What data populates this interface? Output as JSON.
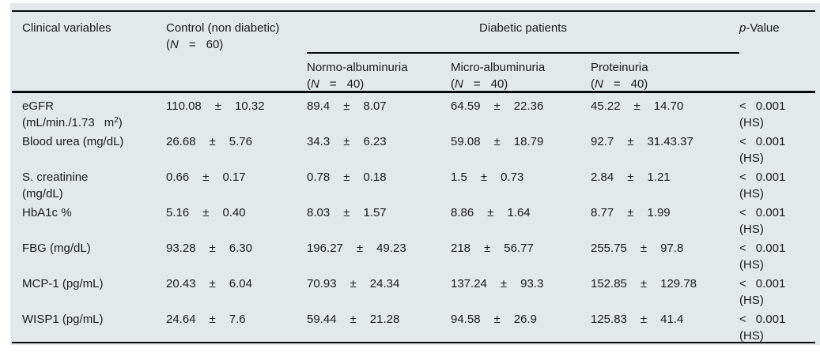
{
  "colors": {
    "table_background": "#e3e8ea",
    "rule": "#0a0a0a"
  },
  "symbols": {
    "paren_open": "(",
    "n_italic": "N",
    "eq": "=",
    "pm": "±",
    "lt": "<"
  },
  "header": {
    "clinical": "Clinical variables",
    "control_title": "Control (non diabetic)",
    "control_n": "60)",
    "diabetic_group": "Diabetic patients",
    "normo_title": "Normo-albuminuria",
    "normo_n": "40)",
    "micro_title": "Micro-albuminuria",
    "micro_n": "40)",
    "prot_title": "Proteinuria",
    "prot_n": "40)",
    "p_italic": "p",
    "p_rest": "-Value"
  },
  "rows": [
    {
      "label1": "eGFR",
      "label2a": "(mL/min./1.73",
      "label2b": "m",
      "label2sup": "2",
      "label2c": ")",
      "control_mean": "110.08",
      "control_sd": "10.32",
      "normo_mean": "89.4",
      "normo_sd": "8.07",
      "micro_mean": "64.59",
      "micro_sd": "22.36",
      "prot_mean": "45.22",
      "prot_sd": "14.70",
      "p": "0.001",
      "p_note": "(HS)"
    },
    {
      "label1": "Blood urea (mg/dL)",
      "control_mean": "26.68",
      "control_sd": "5.76",
      "normo_mean": "34.3",
      "normo_sd": "6.23",
      "micro_mean": "59.08",
      "micro_sd": "18.79",
      "prot_mean": "92.7",
      "prot_sd": "31.43.37",
      "p": "0.001",
      "p_note": "(HS)"
    },
    {
      "label1": "S. creatinine",
      "label2": "(mg/dL)",
      "control_mean": "0.66",
      "control_sd": "0.17",
      "normo_mean": "0.78",
      "normo_sd": "0.18",
      "micro_mean": "1.5",
      "micro_sd": "0.73",
      "prot_mean": "2.84",
      "prot_sd": "1.21",
      "p": "0.001",
      "p_note": "(HS)"
    },
    {
      "label1": "HbA1c %",
      "control_mean": "5.16",
      "control_sd": "0.40",
      "normo_mean": "8.03",
      "normo_sd": "1.57",
      "micro_mean": "8.86",
      "micro_sd": "1.64",
      "prot_mean": "8.77",
      "prot_sd": "1.99",
      "p": "0.001",
      "p_note": "(HS)"
    },
    {
      "label1": "FBG (mg/dL)",
      "control_mean": "93.28",
      "control_sd": "6.30",
      "normo_mean": "196.27",
      "normo_sd": "49.23",
      "micro_mean": "218",
      "micro_sd": "56.77",
      "prot_mean": "255.75",
      "prot_sd": "97.8",
      "p": "0.001",
      "p_note": "(HS)"
    },
    {
      "label1": "MCP-1 (pg/mL)",
      "control_mean": "20.43",
      "control_sd": "6.04",
      "normo_mean": "70.93",
      "normo_sd": "24.34",
      "micro_mean": "137.24",
      "micro_sd": "93.3",
      "prot_mean": "152.85",
      "prot_sd": "129.78",
      "p": "0.001",
      "p_note": "(HS)"
    },
    {
      "label1": "WISP1 (pg/mL)",
      "control_mean": "24.64",
      "control_sd": "7.6",
      "normo_mean": "59.44",
      "normo_sd": "21.28",
      "micro_mean": "94.58",
      "micro_sd": "26.9",
      "prot_mean": "125.83",
      "prot_sd": "41.4",
      "p": "0.001",
      "p_note": "(HS)"
    }
  ]
}
